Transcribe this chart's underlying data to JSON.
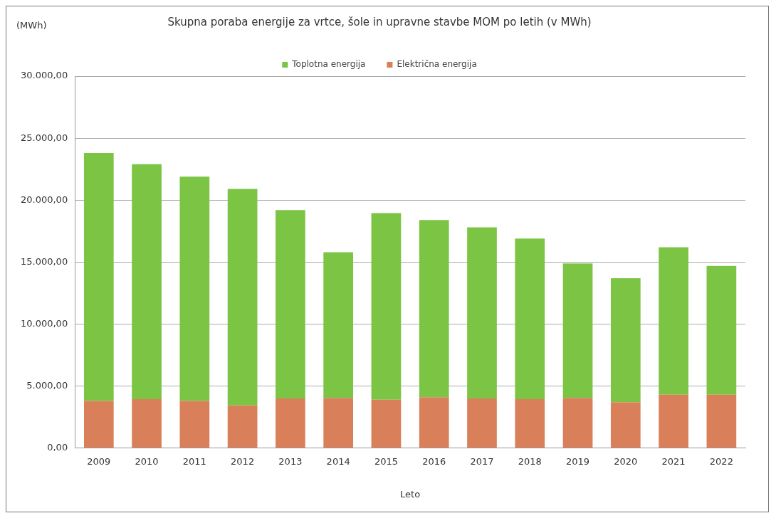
{
  "chart_data": {
    "type": "bar",
    "title": "Skupna poraba energije za vrtce, šole in upravne stavbe MOM po letih (v MWh)",
    "ylabel": "(MWh)",
    "xlabel": "Leto",
    "categories": [
      "2009",
      "2010",
      "2011",
      "2012",
      "2013",
      "2014",
      "2015",
      "2016",
      "2017",
      "2018",
      "2019",
      "2020",
      "2021",
      "2022"
    ],
    "stacked": true,
    "series": [
      {
        "name": "Električna energija",
        "color": "#d9805a",
        "values": [
          3800,
          3950,
          3800,
          3450,
          4000,
          4050,
          3900,
          4100,
          4000,
          3950,
          4050,
          3700,
          4300,
          4300
        ]
      },
      {
        "name": "Toplotna energija",
        "color": "#7cc444",
        "values": [
          20000,
          18950,
          18100,
          17450,
          15200,
          11750,
          15050,
          14300,
          13800,
          12950,
          10850,
          10000,
          11900,
          10400
        ]
      }
    ],
    "ylim": [
      0,
      30000
    ],
    "yticks": [
      {
        "value": 0,
        "label": "0,00"
      },
      {
        "value": 5000,
        "label": "5.000,00"
      },
      {
        "value": 10000,
        "label": "10.000,00"
      },
      {
        "value": 15000,
        "label": "15.000,00"
      },
      {
        "value": 20000,
        "label": "20.000,00"
      },
      {
        "value": 25000,
        "label": "25.000,00"
      },
      {
        "value": 30000,
        "label": "30.000,00"
      }
    ],
    "grid": "y",
    "legend": "top"
  }
}
